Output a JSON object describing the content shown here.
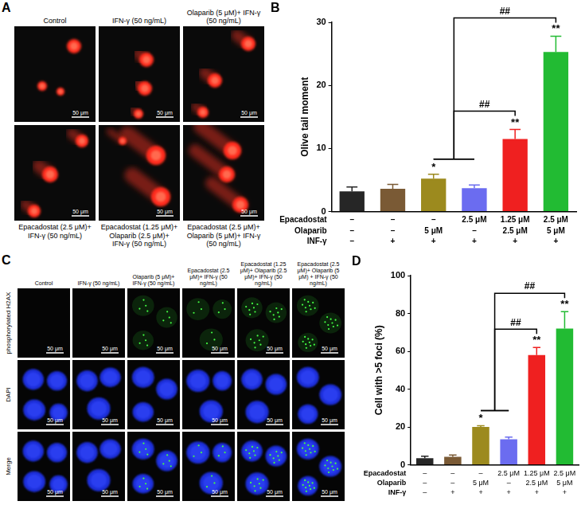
{
  "comet_images": {
    "letter": "A",
    "scale_bar": "50 μm",
    "captions_top": [
      "Control",
      "IFN-γ (50 ng/mL)",
      "Olaparib (5 μM)+ IFN-γ (50 ng/mL)"
    ],
    "captions_bottom": [
      "Epacadostat (2.5 μM)+ IFN-γ (50 ng/mL)",
      "Epacadostat (1.25 μM)+ Olaparib (2.5 μM)+ IFN-γ (50 ng/mL)",
      "Epacadostat (2.5 μM)+ Olaparib (5 μM)+ IFN-γ (50 ng/mL)"
    ]
  },
  "foci_images": {
    "letter": "C",
    "scale_bar": "50 μm",
    "columns": [
      "Control",
      "IFN-γ (50 ng/mL)",
      "Olaparib (5 μM)+ IFN-γ (50 ng/mL)",
      "Epacadostat (2.5 μM)+ IFN-γ (50 ng/mL)",
      "Epacadostat (1.25 μM)+ Olaparib (2.5 μM)+ IFN-γ (50 ng/mL)",
      "Epacadostat (2.5 μM)+ Olaparib (5 μM) + IFN-γ (50 ng/mL)"
    ],
    "rows": [
      "phosphorylated H2AX",
      "DAPI",
      "Merge"
    ]
  },
  "chart_data": [
    {
      "letter": "B",
      "type": "bar",
      "y_label": "Olive tail moment",
      "categories": [
        null,
        null,
        null,
        null,
        null,
        null
      ],
      "values": [
        3.2,
        3.6,
        5.2,
        3.7,
        11.5,
        25.3
      ],
      "errors": [
        0.7,
        0.7,
        0.7,
        0.5,
        1.5,
        2.5
      ],
      "colors": [
        "#262626",
        "#7a5a35",
        "#9c8a1e",
        "#6b6cf0",
        "#ef2020",
        "#22bb33"
      ],
      "ylim": [
        0,
        30
      ],
      "yticks": [
        0,
        10,
        20,
        30
      ],
      "grid": false,
      "condition_table": [
        {
          "label": "Epacadostat",
          "cells": [
            "–",
            "–",
            "–",
            "2.5 μM",
            "1.25 μM",
            "2.5 μM"
          ]
        },
        {
          "label": "Olaparib",
          "cells": [
            "–",
            "–",
            "5 μM",
            "–",
            "2.5 μM",
            "5 μM"
          ]
        },
        {
          "label": "INF-γ",
          "cells": [
            "–",
            "+",
            "+",
            "+",
            "+",
            "+"
          ]
        }
      ],
      "annotations": [
        {
          "text": "*",
          "index": 2
        },
        {
          "text": "**",
          "index": 4
        },
        {
          "text": "**",
          "index": 5
        }
      ],
      "brackets": [
        {
          "text": "##",
          "from": [
            2,
            3
          ],
          "to": 4
        },
        {
          "text": "##",
          "from": [
            2,
            3
          ],
          "to": 5
        }
      ]
    },
    {
      "letter": "D",
      "type": "bar",
      "y_label": "Cell with >5 foci (%)",
      "categories": [
        null,
        null,
        null,
        null,
        null,
        null
      ],
      "values": [
        3.5,
        4.2,
        20,
        13.5,
        58,
        72
      ],
      "errors": [
        1,
        1,
        0.7,
        1.2,
        4,
        9
      ],
      "colors": [
        "#262626",
        "#7a5a35",
        "#9c8a1e",
        "#6b6cf0",
        "#ef2020",
        "#22bb33"
      ],
      "ylim": [
        0,
        100
      ],
      "yticks": [
        0,
        20,
        40,
        60,
        80,
        100
      ],
      "grid": false,
      "condition_table": [
        {
          "label": "Epacadostat",
          "cells": [
            "–",
            "–",
            "–",
            "2.5 μM",
            "1.25 μM",
            "2.5 μM"
          ]
        },
        {
          "label": "Olaparib",
          "cells": [
            "–",
            "–",
            "5 μM",
            "–",
            "2.5 μM",
            "5 μM"
          ]
        },
        {
          "label": "INF-γ",
          "cells": [
            "–",
            "+",
            "+",
            "+",
            "+",
            "+"
          ]
        }
      ],
      "annotations": [
        {
          "text": "*",
          "index": 2
        },
        {
          "text": "**",
          "index": 4
        },
        {
          "text": "**",
          "index": 5
        }
      ],
      "brackets": [
        {
          "text": "##",
          "from": [
            2,
            3
          ],
          "to": 4
        },
        {
          "text": "##",
          "from": [
            2,
            3
          ],
          "to": 5
        }
      ]
    }
  ]
}
